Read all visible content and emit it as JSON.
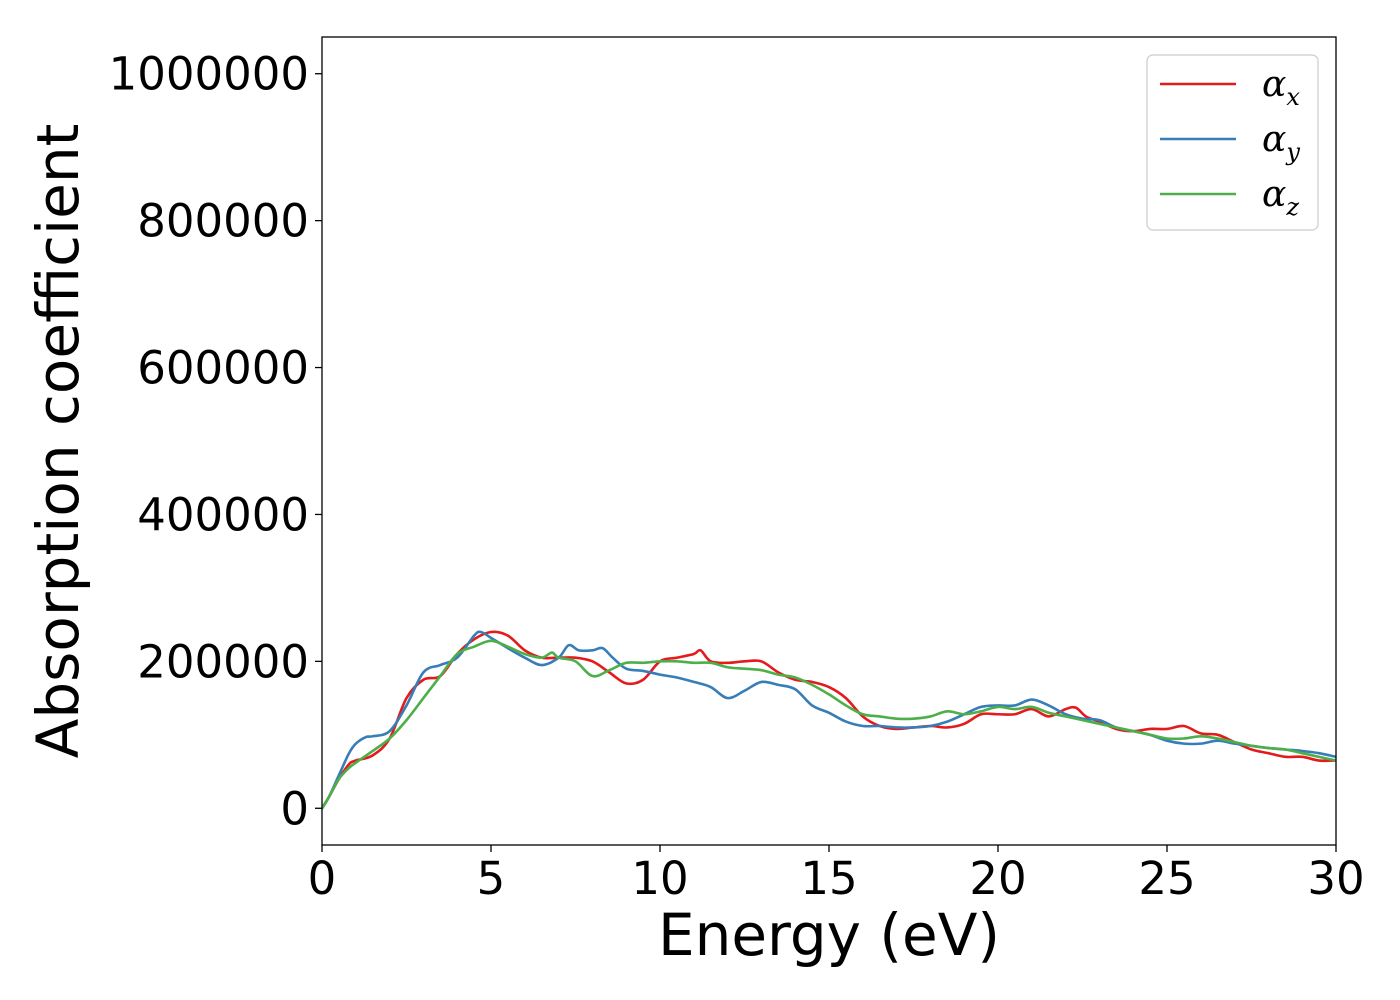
{
  "chart_data": {
    "type": "line",
    "title": "",
    "xlabel": "Energy (eV)",
    "ylabel": "Absorption coefficient",
    "xlim": [
      0,
      30
    ],
    "ylim": [
      -50000,
      1050000
    ],
    "xticks": [
      0,
      5,
      10,
      15,
      20,
      25,
      30
    ],
    "yticks": [
      0,
      200000,
      400000,
      600000,
      800000,
      1000000
    ],
    "xtick_labels": [
      "0",
      "5",
      "10",
      "15",
      "20",
      "25",
      "30"
    ],
    "ytick_labels": [
      "0",
      "200000",
      "400000",
      "600000",
      "800000",
      "1000000"
    ],
    "grid": false,
    "legend_position": "top-right",
    "series": [
      {
        "name": "α",
        "subscript": "x",
        "color": "#e41a1c",
        "x": [
          0,
          0.2,
          0.5,
          0.8,
          1.0,
          1.5,
          2.0,
          2.5,
          3.0,
          3.5,
          4.0,
          4.5,
          5.0,
          5.5,
          6.0,
          6.5,
          7.0,
          7.5,
          8.0,
          8.5,
          9.0,
          9.5,
          10.0,
          10.5,
          11.0,
          11.2,
          11.5,
          12.0,
          12.5,
          13.0,
          13.5,
          14.0,
          14.5,
          15.0,
          15.5,
          16.0,
          16.5,
          17.0,
          17.5,
          18.0,
          18.5,
          19.0,
          19.5,
          20.0,
          20.5,
          21.0,
          21.5,
          22.0,
          22.3,
          22.6,
          23.0,
          23.5,
          24.0,
          24.5,
          25.0,
          25.5,
          26.0,
          26.5,
          27.0,
          27.5,
          28.0,
          28.5,
          29.0,
          29.5,
          30.0
        ],
        "y": [
          0,
          15000,
          40000,
          60000,
          65000,
          72000,
          95000,
          150000,
          175000,
          180000,
          210000,
          230000,
          240000,
          235000,
          215000,
          205000,
          205000,
          205000,
          200000,
          185000,
          170000,
          175000,
          200000,
          205000,
          210000,
          215000,
          200000,
          198000,
          200000,
          200000,
          185000,
          175000,
          172000,
          165000,
          150000,
          125000,
          112000,
          108000,
          110000,
          112000,
          110000,
          115000,
          128000,
          128000,
          128000,
          135000,
          125000,
          135000,
          137000,
          125000,
          118000,
          108000,
          105000,
          108000,
          108000,
          112000,
          102000,
          100000,
          90000,
          80000,
          75000,
          70000,
          70000,
          65000,
          65000
        ]
      },
      {
        "name": "α",
        "subscript": "y",
        "color": "#377eb8",
        "x": [
          0,
          0.2,
          0.5,
          0.8,
          1.0,
          1.3,
          1.5,
          2.0,
          2.5,
          3.0,
          3.5,
          4.0,
          4.5,
          4.7,
          5.0,
          5.5,
          6.0,
          6.5,
          7.0,
          7.3,
          7.6,
          8.0,
          8.3,
          8.6,
          9.0,
          9.5,
          10.0,
          10.5,
          11.0,
          11.5,
          12.0,
          12.5,
          13.0,
          13.5,
          14.0,
          14.5,
          15.0,
          15.5,
          16.0,
          16.5,
          17.0,
          17.5,
          18.0,
          18.5,
          19.0,
          19.5,
          20.0,
          20.5,
          21.0,
          21.5,
          22.0,
          22.5,
          23.0,
          23.5,
          24.0,
          24.5,
          25.0,
          25.5,
          26.0,
          26.5,
          27.0,
          27.5,
          28.0,
          28.5,
          29.0,
          29.5,
          30.0
        ],
        "y": [
          0,
          15000,
          45000,
          75000,
          88000,
          97000,
          98000,
          105000,
          140000,
          185000,
          195000,
          205000,
          235000,
          240000,
          232000,
          218000,
          205000,
          195000,
          205000,
          222000,
          215000,
          215000,
          218000,
          205000,
          190000,
          187000,
          182000,
          178000,
          172000,
          165000,
          150000,
          160000,
          172000,
          168000,
          162000,
          140000,
          130000,
          118000,
          112000,
          112000,
          110000,
          110000,
          112000,
          118000,
          128000,
          138000,
          140000,
          140000,
          148000,
          140000,
          128000,
          122000,
          120000,
          110000,
          105000,
          100000,
          92000,
          88000,
          88000,
          92000,
          88000,
          85000,
          82000,
          80000,
          78000,
          75000,
          70000
        ]
      },
      {
        "name": "α",
        "subscript": "z",
        "color": "#4daf4a",
        "x": [
          0,
          0.2,
          0.5,
          0.8,
          1.0,
          1.5,
          2.0,
          2.5,
          3.0,
          3.5,
          4.0,
          4.5,
          5.0,
          5.5,
          6.0,
          6.5,
          6.8,
          7.0,
          7.5,
          8.0,
          8.5,
          9.0,
          9.5,
          10.0,
          10.5,
          11.0,
          11.5,
          12.0,
          12.5,
          13.0,
          13.5,
          14.0,
          14.5,
          15.0,
          15.5,
          16.0,
          16.5,
          17.0,
          17.5,
          18.0,
          18.5,
          19.0,
          19.5,
          20.0,
          20.5,
          21.0,
          21.5,
          22.0,
          22.5,
          23.0,
          23.5,
          24.0,
          24.5,
          25.0,
          25.5,
          26.0,
          26.5,
          27.0,
          27.5,
          28.0,
          28.5,
          29.0,
          29.5,
          30.0
        ],
        "y": [
          0,
          15000,
          40000,
          55000,
          62000,
          78000,
          95000,
          120000,
          150000,
          180000,
          210000,
          220000,
          228000,
          220000,
          210000,
          205000,
          212000,
          205000,
          200000,
          180000,
          188000,
          198000,
          198000,
          200000,
          200000,
          198000,
          198000,
          192000,
          190000,
          188000,
          182000,
          178000,
          168000,
          155000,
          140000,
          128000,
          125000,
          122000,
          122000,
          125000,
          132000,
          128000,
          132000,
          138000,
          135000,
          138000,
          130000,
          125000,
          120000,
          115000,
          110000,
          105000,
          100000,
          95000,
          95000,
          98000,
          95000,
          90000,
          85000,
          82000,
          80000,
          75000,
          70000,
          65000
        ]
      }
    ]
  }
}
